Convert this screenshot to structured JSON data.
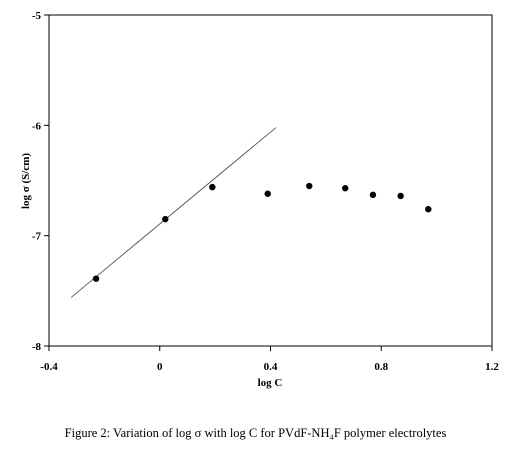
{
  "chart_data": {
    "type": "scatter",
    "xlabel": "log C",
    "ylabel": "log σ (S/cm)",
    "xlim": [
      -0.4,
      1.2
    ],
    "ylim": [
      -8,
      -5
    ],
    "x_ticks": [
      -0.4,
      0,
      0.4,
      0.8,
      1.2
    ],
    "x_tick_labels": [
      "-0.4",
      "0",
      "0.4",
      "0.8",
      "1.2"
    ],
    "y_ticks": [
      -8,
      -7,
      -6,
      -5
    ],
    "y_tick_labels": [
      "-8",
      "-7",
      "-6",
      "-5"
    ],
    "grid": false,
    "legend": "none",
    "series": [
      {
        "type": "scatter",
        "x": [
          -0.23,
          0.02,
          0.19,
          0.39,
          0.54,
          0.67,
          0.77,
          0.87,
          0.97
        ],
        "y": [
          -7.39,
          -6.85,
          -6.56,
          -6.62,
          -6.55,
          -6.57,
          -6.63,
          -6.64,
          -6.76
        ],
        "color": "#000000"
      },
      {
        "type": "line",
        "x": [
          -0.32,
          0.42
        ],
        "y": [
          -7.56,
          -6.02
        ],
        "color": "#555555"
      }
    ],
    "caption": "Figure 2: Variation of log σ with log C for PVdF-NH₄F polymer electrolytes"
  }
}
